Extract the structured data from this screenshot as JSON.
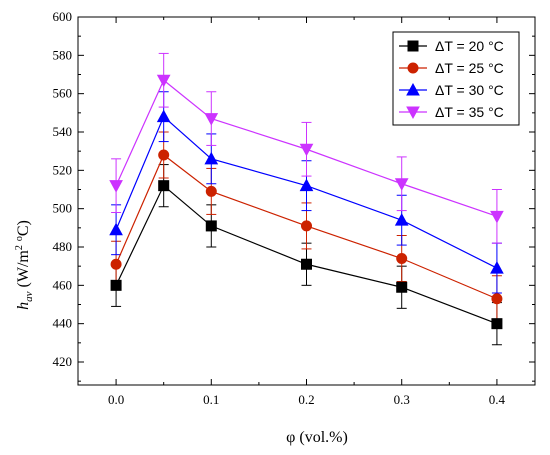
{
  "chart_data": {
    "type": "line",
    "xlabel": "φ (vol.%)",
    "ylabel": {
      "main": "h",
      "sub": "av",
      "unit_open": " (W/m",
      "sup1": "2",
      "unit_mid": " ",
      "sup2": "o",
      "unit_close": "C)"
    },
    "xlim": [
      -0.04,
      0.44
    ],
    "ylim": [
      408,
      600
    ],
    "x_ticks": [
      0.0,
      0.1,
      0.2,
      0.3,
      0.4
    ],
    "x_tick_labels": [
      "0.0",
      "0.1",
      "0.2",
      "0.3",
      "0.4"
    ],
    "y_ticks": [
      420,
      440,
      460,
      480,
      500,
      520,
      540,
      560,
      580,
      600
    ],
    "y_tick_labels": [
      "420",
      "440",
      "460",
      "480",
      "500",
      "520",
      "540",
      "560",
      "580",
      "600"
    ],
    "x": [
      0.0,
      0.05,
      0.1,
      0.2,
      0.3,
      0.4
    ],
    "series": [
      {
        "name": "ΔT = 20 °C",
        "color": "#000000",
        "marker": "square",
        "values": [
          460,
          512,
          491,
          471,
          459,
          440
        ],
        "error": 11
      },
      {
        "name": "ΔT = 25 °C",
        "color": "#cc2200",
        "marker": "circle",
        "values": [
          471,
          528,
          509,
          491,
          474,
          453
        ],
        "error": 12
      },
      {
        "name": "ΔT = 30 °C",
        "color": "#0000ff",
        "marker": "triangle-up",
        "values": [
          489,
          548,
          526,
          512,
          494,
          469
        ],
        "error": 13
      },
      {
        "name": "ΔT = 35 °C",
        "color": "#cc33ff",
        "marker": "triangle-down",
        "values": [
          512,
          567,
          547,
          531,
          513,
          496
        ],
        "error": 14
      }
    ],
    "legend": "top-right",
    "grid": false
  }
}
